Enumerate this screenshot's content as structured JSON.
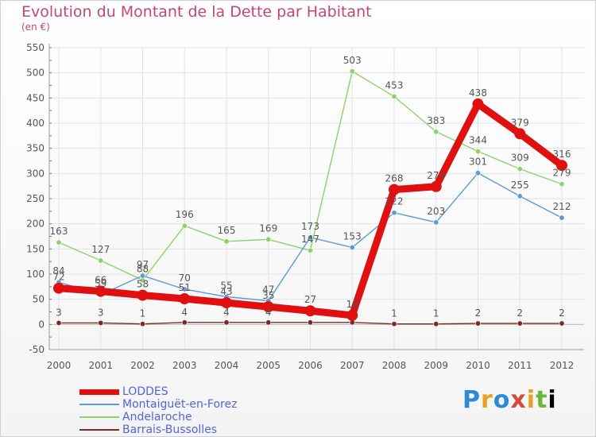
{
  "chart_data": {
    "type": "line",
    "title": "Evolution du Montant de la Dette par Habitant",
    "subtitle": "(en €)",
    "xlabel": "",
    "ylabel": "",
    "categories": [
      "2000",
      "2001",
      "2002",
      "2003",
      "2004",
      "2005",
      "2006",
      "2007",
      "2008",
      "2009",
      "2010",
      "2011",
      "2012"
    ],
    "yticks": [
      "550",
      "500",
      "450",
      "400",
      "350",
      "300",
      "250",
      "200",
      "150",
      "100",
      "50",
      "0",
      "-50"
    ],
    "ylim": [
      -50,
      550
    ],
    "grid": true,
    "legend_position": "bottom-left",
    "series": [
      {
        "name": "LODDES",
        "color": "#e01010",
        "values": [
          72,
          66,
          58,
          51,
          43,
          35,
          27,
          18,
          268,
          274,
          438,
          379,
          316
        ],
        "labels": [
          "72",
          "66",
          "58",
          "51",
          "43",
          "35",
          "27",
          "18",
          "268",
          "274",
          "438",
          "379",
          "316"
        ]
      },
      {
        "name": "Montaiguët-en-Forez",
        "color": "#5b9bd5",
        "values": [
          84,
          59,
          97,
          70,
          55,
          47,
          173,
          153,
          222,
          203,
          301,
          255,
          212
        ],
        "labels": [
          "84",
          "59",
          "97",
          "70",
          "55",
          "47",
          "173",
          "153",
          "222",
          "203",
          "301",
          "255",
          "212"
        ]
      },
      {
        "name": "Andelaroche",
        "color": "#8ed16a",
        "values": [
          163,
          127,
          88,
          196,
          165,
          169,
          147,
          503,
          453,
          383,
          344,
          309,
          279
        ],
        "labels": [
          "163",
          "127",
          "88",
          "196",
          "165",
          "169",
          "147",
          "503",
          "453",
          "383",
          "344",
          "309",
          "279"
        ]
      },
      {
        "name": "Barrais-Bussolles",
        "color": "#7b2a2a",
        "values": [
          3,
          3,
          1,
          4,
          4,
          4,
          4,
          4,
          1,
          1,
          2,
          2,
          2
        ],
        "labels": [
          "3",
          "3",
          "1",
          "4",
          "4",
          "4",
          "",
          "",
          "1",
          "1",
          "2",
          "2",
          "2"
        ]
      }
    ]
  },
  "logo": {
    "letters": [
      "P",
      "r",
      "o",
      "x",
      "i",
      "t",
      "i"
    ]
  }
}
